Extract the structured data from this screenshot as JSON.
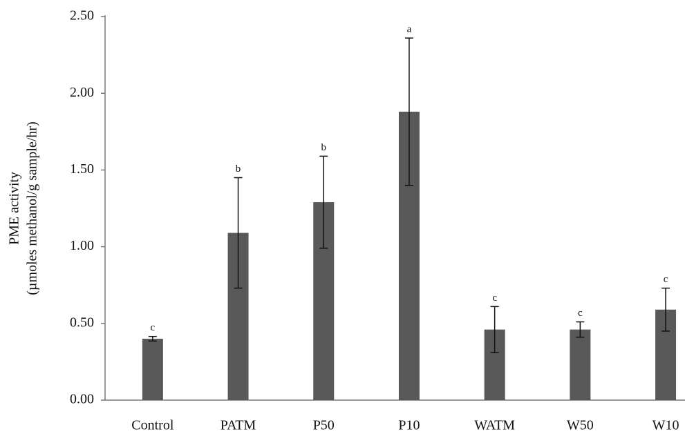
{
  "chart_data": {
    "type": "bar",
    "y_label": [
      "PME activity",
      "(µmoles methanol/g sample/hr)"
    ],
    "categories": [
      "Control",
      "PATM",
      "P50",
      "P10",
      "WATM",
      "W50",
      "W10"
    ],
    "values": [
      0.4,
      1.09,
      1.29,
      1.88,
      0.46,
      0.46,
      0.59
    ],
    "errors": [
      0.015,
      0.36,
      0.3,
      0.48,
      0.15,
      0.05,
      0.14
    ],
    "annotations": [
      "c",
      "b",
      "b",
      "a",
      "c",
      "c",
      "c"
    ],
    "color": "#595959",
    "ylim": [
      0,
      2.5
    ],
    "yticks": [
      {
        "value": 0,
        "label": "0.00"
      },
      {
        "value": 0.5,
        "label": "0.50"
      },
      {
        "value": 1,
        "label": "1.00"
      },
      {
        "value": 1.5,
        "label": "1.50"
      },
      {
        "value": 2,
        "label": "2.00"
      },
      {
        "value": 2.5,
        "label": "2.50"
      }
    ]
  }
}
